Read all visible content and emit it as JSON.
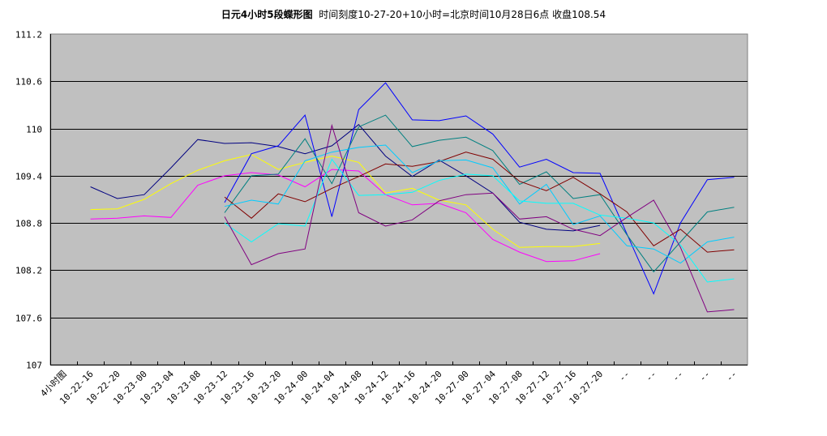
{
  "title": {
    "main": "日元4小时5段蝶形图",
    "sub": "时间刻度10-27-20+10小时=北京时间10月28日6点  收盘108.54"
  },
  "colors": {
    "plot_bg": "#C0C0C0",
    "gridline": "#000000"
  },
  "chart_data": {
    "type": "line",
    "title": "日元4小时5段蝶形图  时间刻度10-27-20+10小时=北京时间10月28日6点  收盘108.54",
    "xlabel": "",
    "ylabel": "",
    "ylim": [
      107,
      111.2
    ],
    "yticks": [
      107,
      107.6,
      108.2,
      108.8,
      109.4,
      110,
      110.6,
      111.2
    ],
    "ytick_labels": [
      "107",
      "107.6",
      "108.2",
      "108.8",
      "109.4",
      "110",
      "110.6",
      "111.2"
    ],
    "grid": true,
    "legend": "none",
    "categories": [
      "4小时图",
      "10-22-16",
      "10-22-20",
      "10-23-00",
      "10-23-04",
      "10-23-08",
      "10-23-12",
      "10-23-16",
      "10-23-20",
      "10-24-00",
      "10-24-04",
      "10-24-08",
      "10-24-12",
      "10-24-16",
      "10-24-20",
      "10-27-00",
      "10-27-04",
      "10-27-08",
      "10-27-12",
      "10-27-16",
      "10-27-20",
      "--",
      "--",
      "--",
      "--",
      "--"
    ],
    "series": [
      {
        "name": "navy",
        "color": "#000080",
        "start": 1,
        "values": [
          109.26,
          109.11,
          109.16,
          109.5,
          109.86,
          109.81,
          109.82,
          109.77,
          109.68,
          109.78,
          110.05,
          109.65,
          109.39,
          109.6,
          109.4,
          109.18,
          108.81,
          108.72,
          108.7,
          108.77
        ]
      },
      {
        "name": "yellow",
        "color": "#FFFF00",
        "start": 1,
        "values": [
          108.97,
          108.98,
          109.1,
          109.3,
          109.47,
          109.59,
          109.67,
          109.48,
          109.57,
          109.65,
          109.57,
          109.18,
          109.24,
          109.09,
          109.03,
          108.72,
          108.49,
          108.5,
          108.5,
          108.54
        ]
      },
      {
        "name": "magenta",
        "color": "#FF00FF",
        "start": 1,
        "values": [
          108.85,
          108.86,
          108.89,
          108.87,
          109.28,
          109.4,
          109.44,
          109.41,
          109.26,
          109.48,
          109.46,
          109.16,
          109.03,
          109.05,
          108.93,
          108.59,
          108.43,
          108.31,
          108.32,
          108.41
        ]
      },
      {
        "name": "blue",
        "color": "#0000FF",
        "start": 6,
        "values": [
          109.06,
          109.68,
          109.78,
          110.17,
          108.88,
          110.24,
          110.58,
          110.11,
          110.1,
          110.16,
          109.93,
          109.51,
          109.61,
          109.44,
          109.43,
          108.66,
          107.9,
          108.8,
          109.35,
          109.38
        ]
      },
      {
        "name": "teal",
        "color": "#008080",
        "start": 6,
        "values": [
          108.93,
          109.4,
          109.42,
          109.87,
          109.3,
          110.02,
          110.17,
          109.77,
          109.85,
          109.89,
          109.72,
          109.29,
          109.45,
          109.11,
          109.16,
          108.65,
          108.18,
          108.56,
          108.94,
          109.0
        ]
      },
      {
        "name": "maroon",
        "color": "#800000",
        "start": 6,
        "values": [
          109.13,
          108.86,
          109.17,
          109.07,
          109.24,
          109.39,
          109.55,
          109.52,
          109.58,
          109.7,
          109.61,
          109.33,
          109.21,
          109.38,
          109.17,
          108.94,
          108.51,
          108.72,
          108.43,
          108.46
        ]
      },
      {
        "name": "skyblue",
        "color": "#00CCFF",
        "start": 6,
        "values": [
          109.01,
          109.09,
          109.04,
          109.59,
          109.7,
          109.76,
          109.79,
          109.44,
          109.59,
          109.6,
          109.5,
          109.04,
          109.29,
          108.78,
          108.89,
          108.51,
          108.47,
          108.29,
          108.56,
          108.62
        ]
      },
      {
        "name": "aqua",
        "color": "#00FFFF",
        "start": 6,
        "values": [
          108.8,
          108.56,
          108.79,
          108.76,
          109.61,
          109.15,
          109.16,
          109.19,
          109.34,
          109.42,
          109.4,
          109.08,
          109.05,
          109.05,
          108.9,
          108.86,
          108.8,
          108.52,
          108.05,
          108.09
        ]
      },
      {
        "name": "purple",
        "color": "#800080",
        "start": 6,
        "values": [
          108.88,
          108.27,
          108.41,
          108.47,
          110.04,
          108.93,
          108.76,
          108.84,
          109.08,
          109.16,
          109.18,
          108.85,
          108.88,
          108.72,
          108.64,
          108.87,
          109.09,
          108.49,
          107.67,
          107.7
        ]
      }
    ]
  }
}
